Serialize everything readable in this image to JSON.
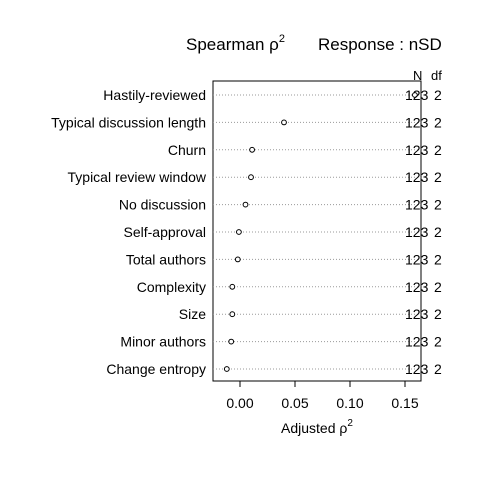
{
  "chart_data": {
    "type": "scatter",
    "title": "Spearman ρ",
    "title_superscript": "2",
    "response_label": "Response : nSD",
    "xlabel": "Adjusted ρ",
    "xlabel_superscript": "2",
    "xlim": [
      -0.015,
      0.163
    ],
    "xticks": [
      0.0,
      0.05,
      0.1,
      0.15
    ],
    "xtick_labels": [
      "0.00",
      "0.05",
      "0.10",
      "0.15"
    ],
    "grid": "dotted horizontal",
    "column_headers": {
      "n": "N",
      "df": "df"
    },
    "categories": [
      "Hastily-reviewed",
      "Typical discussion length",
      "Churn",
      "Typical review window",
      "No discussion",
      "Self-approval",
      "Total authors",
      "Complexity",
      "Size",
      "Minor authors",
      "Change entropy"
    ],
    "values": [
      0.159,
      0.04,
      0.011,
      0.01,
      0.005,
      -0.001,
      -0.002,
      -0.007,
      -0.007,
      -0.008,
      -0.012
    ],
    "n": [
      "123",
      "123",
      "123",
      "123",
      "123",
      "123",
      "123",
      "123",
      "123",
      "123",
      "123"
    ],
    "df": [
      "2",
      "2",
      "2",
      "2",
      "2",
      "2",
      "2",
      "2",
      "2",
      "2",
      "2"
    ]
  }
}
